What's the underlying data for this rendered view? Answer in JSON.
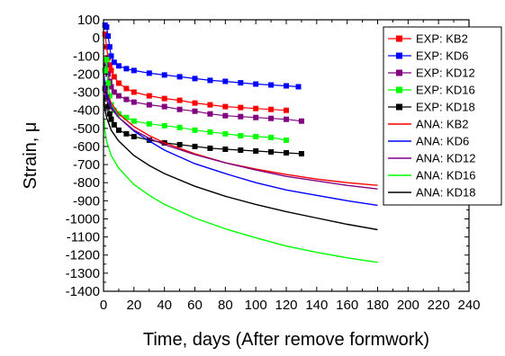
{
  "chart_data": {
    "type": "line",
    "xlabel": "Time, days (After remove formwork)",
    "ylabel": "Strain, μ",
    "xlim": [
      0,
      240
    ],
    "ylim": [
      -1400,
      100
    ],
    "xticks": [
      0,
      20,
      40,
      60,
      80,
      100,
      120,
      140,
      160,
      180,
      200,
      220,
      240
    ],
    "yticks": [
      100,
      0,
      -100,
      -200,
      -300,
      -400,
      -500,
      -600,
      -700,
      -800,
      -900,
      -1000,
      -1100,
      -1200,
      -1300,
      -1400
    ],
    "legend_position": "top-right",
    "grid": false,
    "series": [
      {
        "name": "EXP: KB2",
        "kind": "experimental",
        "color": "#ff0000",
        "x": [
          1,
          2,
          3,
          4,
          5,
          7,
          10,
          15,
          20,
          30,
          40,
          50,
          60,
          70,
          80,
          90,
          100,
          110,
          120
        ],
        "y": [
          20,
          -50,
          -110,
          -150,
          -180,
          -215,
          -250,
          -280,
          -300,
          -320,
          -335,
          -345,
          -360,
          -370,
          -380,
          -385,
          -390,
          -395,
          -400
        ]
      },
      {
        "name": "EXP: KD6",
        "kind": "experimental",
        "color": "#0000ff",
        "x": [
          1,
          2,
          3,
          4,
          5,
          7,
          10,
          15,
          20,
          30,
          40,
          50,
          60,
          70,
          80,
          90,
          100,
          110,
          120,
          128
        ],
        "y": [
          70,
          60,
          10,
          -50,
          -100,
          -135,
          -155,
          -170,
          -180,
          -195,
          -205,
          -215,
          -225,
          -235,
          -240,
          -248,
          -255,
          -260,
          -265,
          -270
        ]
      },
      {
        "name": "EXP: KD12",
        "kind": "experimental",
        "color": "#800080",
        "x": [
          1,
          2,
          3,
          4,
          5,
          7,
          10,
          15,
          20,
          30,
          40,
          50,
          60,
          70,
          80,
          90,
          100,
          110,
          120,
          130
        ],
        "y": [
          -180,
          -150,
          -200,
          -240,
          -270,
          -300,
          -320,
          -340,
          -355,
          -370,
          -380,
          -395,
          -405,
          -420,
          -430,
          -435,
          -440,
          -445,
          -450,
          -460
        ]
      },
      {
        "name": "EXP: KD16",
        "kind": "experimental",
        "color": "#00ff00",
        "x": [
          1,
          2,
          3,
          4,
          5,
          7,
          10,
          15,
          20,
          30,
          40,
          50,
          60,
          70,
          80,
          90,
          100,
          110,
          120
        ],
        "y": [
          -180,
          -120,
          -250,
          -320,
          -370,
          -400,
          -420,
          -440,
          -460,
          -475,
          -485,
          -495,
          -510,
          -520,
          -530,
          -540,
          -545,
          -550,
          -565
        ]
      },
      {
        "name": "EXP: KD18",
        "kind": "experimental",
        "color": "#000000",
        "x": [
          1,
          2,
          3,
          4,
          5,
          7,
          10,
          15,
          20,
          30,
          40,
          50,
          60,
          70,
          80,
          90,
          100,
          110,
          120,
          130
        ],
        "y": [
          -280,
          -330,
          -380,
          -420,
          -450,
          -480,
          -510,
          -530,
          -545,
          -565,
          -580,
          -590,
          -600,
          -610,
          -615,
          -620,
          -625,
          -630,
          -635,
          -640
        ]
      },
      {
        "name": "ANA: KB2",
        "kind": "analytical",
        "color": "#ff0000",
        "x": [
          0.2,
          1,
          2,
          5,
          10,
          20,
          30,
          40,
          60,
          80,
          100,
          120,
          140,
          160,
          180
        ],
        "y": [
          -200,
          -260,
          -300,
          -360,
          -420,
          -490,
          -540,
          -580,
          -640,
          -690,
          -725,
          -755,
          -780,
          -800,
          -815
        ]
      },
      {
        "name": "ANA: KD6",
        "kind": "analytical",
        "color": "#0000ff",
        "x": [
          0.2,
          1,
          2,
          5,
          10,
          20,
          30,
          40,
          60,
          80,
          100,
          120,
          140,
          160,
          180
        ],
        "y": [
          -200,
          -270,
          -310,
          -380,
          -440,
          -515,
          -570,
          -620,
          -695,
          -750,
          -800,
          -840,
          -870,
          -900,
          -925
        ]
      },
      {
        "name": "ANA: KD12",
        "kind": "analytical",
        "color": "#800080",
        "x": [
          0.2,
          1,
          2,
          5,
          10,
          20,
          30,
          40,
          60,
          80,
          100,
          120,
          140,
          160,
          180
        ],
        "y": [
          -260,
          -310,
          -340,
          -390,
          -440,
          -510,
          -555,
          -590,
          -645,
          -690,
          -730,
          -765,
          -790,
          -815,
          -835
        ]
      },
      {
        "name": "ANA: KD16",
        "kind": "analytical",
        "color": "#00ff00",
        "x": [
          0.2,
          1,
          2,
          5,
          10,
          20,
          30,
          40,
          60,
          80,
          100,
          120,
          140,
          160,
          180
        ],
        "y": [
          -440,
          -520,
          -570,
          -650,
          -720,
          -810,
          -870,
          -920,
          -995,
          -1055,
          -1105,
          -1150,
          -1185,
          -1215,
          -1240
        ]
      },
      {
        "name": "ANA: KD18",
        "kind": "analytical",
        "color": "#000000",
        "x": [
          0.2,
          1,
          2,
          5,
          10,
          20,
          30,
          40,
          60,
          80,
          100,
          120,
          140,
          160,
          180
        ],
        "y": [
          -330,
          -400,
          -440,
          -510,
          -570,
          -650,
          -705,
          -750,
          -820,
          -875,
          -920,
          -960,
          -995,
          -1030,
          -1060
        ]
      }
    ]
  }
}
